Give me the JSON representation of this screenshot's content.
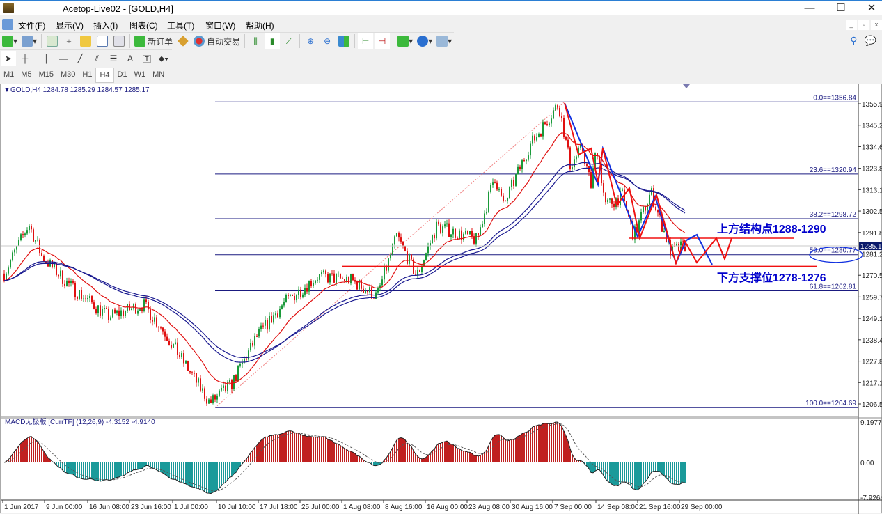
{
  "window": {
    "title": "Acetop-Live02 - [GOLD,H4]",
    "minimize": "—",
    "maximize": "☐",
    "close": "✕"
  },
  "menu": [
    "文件(F)",
    "显示(V)",
    "插入(I)",
    "图表(C)",
    "工具(T)",
    "窗口(W)",
    "帮助(H)"
  ],
  "toolbar": {
    "new_order": "新订单",
    "auto_trading": "自动交易"
  },
  "drawing_tools": {
    "text_tool": "A"
  },
  "timeframes": [
    "M1",
    "M5",
    "M15",
    "M30",
    "H1",
    "H4",
    "D1",
    "W1",
    "MN"
  ],
  "active_timeframe": "H4",
  "chart": {
    "header": "GOLD,H4  1284.78 1285.29 1284.57 1285.17",
    "symbol": "GOLD",
    "period": "H4",
    "ohlc": {
      "open": 1284.78,
      "high": 1285.29,
      "low": 1284.57,
      "close": 1285.17
    },
    "current_price": "1285.17",
    "price_ticks": [
      "1355.90",
      "1345.25",
      "1334.60",
      "1323.80",
      "1313.15",
      "1302.50",
      "1291.85",
      "1281.20",
      "1270.55",
      "1259.75",
      "1249.10",
      "1238.45",
      "1227.80",
      "1217.15",
      "1206.50"
    ],
    "fib_levels": [
      {
        "label": "0.0==1356.84",
        "price": 1356.84
      },
      {
        "label": "23.6==1320.94",
        "price": 1320.94
      },
      {
        "label": "38.2==1298.72",
        "price": 1298.72
      },
      {
        "label": "50.0==1280.77",
        "price": 1280.77
      },
      {
        "label": "61.8==1262.81",
        "price": 1262.81
      },
      {
        "label": "100.0==1204.69",
        "price": 1204.69
      }
    ],
    "annotations": {
      "upper": "上方结构点1288-1290",
      "lower": "下方支撑位1278-1276",
      "upper_line": 1289,
      "lower_line": 1275
    },
    "colors": {
      "bull": "#1a9a3a",
      "bear": "#e01010",
      "ma_fast": "#e01010",
      "ma_slow": "#1a1a90",
      "fib": "#1a1a80",
      "zigzag_blue": "#1030e0",
      "zigzag_red": "#f01010"
    }
  },
  "macd": {
    "header": "MACD无极版 [CurrTF] (12,26,9) -4.3152 -4.9140",
    "ticks": [
      "9.1977",
      "0.00",
      "-7.9264"
    ],
    "colors": {
      "positive": "#c02020",
      "negative": "#1a9a9a"
    }
  },
  "chart_data": {
    "type": "candlestick",
    "x_ticks": [
      {
        "label": "1 Jun 2017",
        "t": "2017-06-01T00:00"
      },
      {
        "label": "9 Jun 00:00",
        "t": "2017-06-09T00:00"
      },
      {
        "label": "16 Jun 08:00",
        "t": "2017-06-16T08:00"
      },
      {
        "label": "23 Jun 16:00",
        "t": "2017-06-23T16:00"
      },
      {
        "label": "1 Jul 00:00",
        "t": "2017-07-01T00:00"
      },
      {
        "label": "10 Jul 10:00",
        "t": "2017-07-10T10:00"
      },
      {
        "label": "17 Jul 18:00",
        "t": "2017-07-17T18:00"
      },
      {
        "label": "25 Jul 00:00",
        "t": "2017-07-25T00:00"
      },
      {
        "label": "1 Aug 08:00",
        "t": "2017-08-01T08:00"
      },
      {
        "label": "8 Aug 16:00",
        "t": "2017-08-08T16:00"
      },
      {
        "label": "16 Aug 00:00",
        "t": "2017-08-16T00:00"
      },
      {
        "label": "23 Aug 08:00",
        "t": "2017-08-23T08:00"
      },
      {
        "label": "30 Aug 16:00",
        "t": "2017-08-30T16:00"
      },
      {
        "label": "7 Sep 00:00",
        "t": "2017-09-07T00:00"
      },
      {
        "label": "14 Sep 08:00",
        "t": "2017-09-14T08:00"
      },
      {
        "label": "21 Sep 16:00",
        "t": "2017-09-21T16:00"
      },
      {
        "label": "29 Sep 00:00",
        "t": "2017-09-29T00:00"
      }
    ],
    "ylim": [
      1206.5,
      1355.9
    ],
    "price_path": [
      [
        "2017-06-01T00:00",
        1270
      ],
      [
        "2017-06-06T00:00",
        1296
      ],
      [
        "2017-06-08T12:00",
        1280
      ],
      [
        "2017-06-13T10:00",
        1265
      ],
      [
        "2017-06-20T00:00",
        1250
      ],
      [
        "2017-06-26T00:00",
        1256
      ],
      [
        "2017-06-29T00:00",
        1245
      ],
      [
        "2017-07-04T00:00",
        1225
      ],
      [
        "2017-07-09T00:00",
        1207
      ],
      [
        "2017-07-13T00:00",
        1216
      ],
      [
        "2017-07-17T12:00",
        1240
      ],
      [
        "2017-07-22T00:00",
        1256
      ],
      [
        "2017-07-28T00:00",
        1270
      ],
      [
        "2017-08-03T00:00",
        1268
      ],
      [
        "2017-08-07T12:00",
        1260
      ],
      [
        "2017-08-11T00:00",
        1290
      ],
      [
        "2017-08-14T12:00",
        1270
      ],
      [
        "2017-08-18T00:00",
        1295
      ],
      [
        "2017-08-25T00:00",
        1288
      ],
      [
        "2017-08-28T00:00",
        1320
      ],
      [
        "2017-08-29T12:00",
        1305
      ],
      [
        "2017-09-03T00:00",
        1335
      ],
      [
        "2017-09-08T00:00",
        1356
      ],
      [
        "2017-09-10T00:00",
        1325
      ],
      [
        "2017-09-12T00:00",
        1334
      ],
      [
        "2017-09-13T12:00",
        1315
      ],
      [
        "2017-09-14T12:00",
        1335
      ],
      [
        "2017-09-16T00:00",
        1305
      ],
      [
        "2017-09-19T00:00",
        1310
      ],
      [
        "2017-09-21T00:00",
        1290
      ],
      [
        "2017-09-24T00:00",
        1312
      ],
      [
        "2017-09-27T12:00",
        1282
      ],
      [
        "2017-09-30T00:00",
        1285.17
      ]
    ]
  }
}
